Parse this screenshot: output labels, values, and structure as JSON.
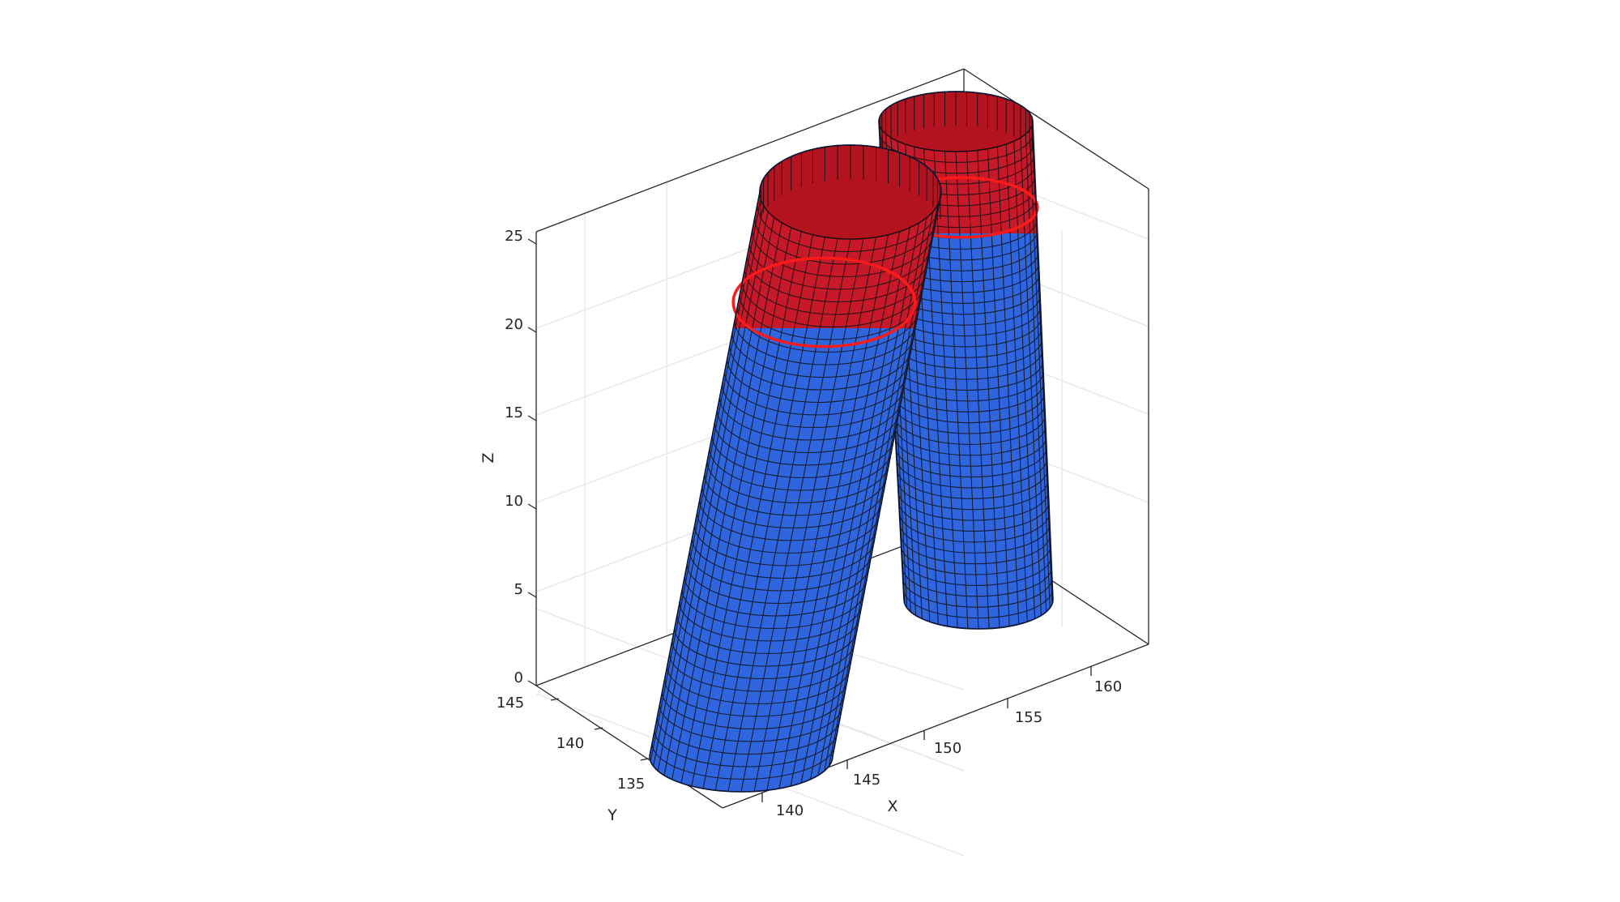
{
  "chart_data": {
    "type": "surface3d",
    "title": "",
    "xlabel": "X",
    "ylabel": "Y",
    "zlabel": "Z",
    "xlim": [
      136,
      164
    ],
    "ylim": [
      131,
      146
    ],
    "zlim": [
      0,
      26
    ],
    "xticks": [
      140,
      145,
      150,
      155,
      160
    ],
    "yticks": [
      135,
      140,
      145
    ],
    "zticks": [
      0,
      5,
      10,
      15,
      20,
      25
    ],
    "xtick_labels": [
      "140",
      "145",
      "150",
      "155",
      "160"
    ],
    "ytick_labels": [
      "135",
      "140",
      "145"
    ],
    "ztick_labels": [
      "0",
      "5",
      "10",
      "15",
      "20",
      "25"
    ],
    "grid": true,
    "box": true,
    "colors": {
      "lower_region": "#2f66e0",
      "upper_region": "#c8192a",
      "boundary_line": "#ff1a1a",
      "mesh": "#111111",
      "axes": "#262626",
      "grid": "#e6e6e6"
    },
    "series": [
      {
        "region_color": "lower_region",
        "tubes": [
          {
            "base_center": [
              140,
              134.5,
              0
            ],
            "top_center": [
              143,
              140,
              20
            ],
            "radius": 4.5
          },
          {
            "base_center": [
              154.5,
              138.5,
              5
            ],
            "top_center": [
              153.5,
              140,
              22
            ],
            "radius": 4.4
          }
        ]
      },
      {
        "region_color": "upper_region",
        "tubes": [
          {
            "base_center": [
              143,
              140,
              20
            ],
            "top_center": [
              144.5,
              143,
              27
            ],
            "radius": 4.5
          },
          {
            "base_center": [
              153.5,
              140,
              22
            ],
            "top_center": [
              153.5,
              140.5,
              29
            ],
            "radius": 4.4
          }
        ]
      }
    ]
  }
}
